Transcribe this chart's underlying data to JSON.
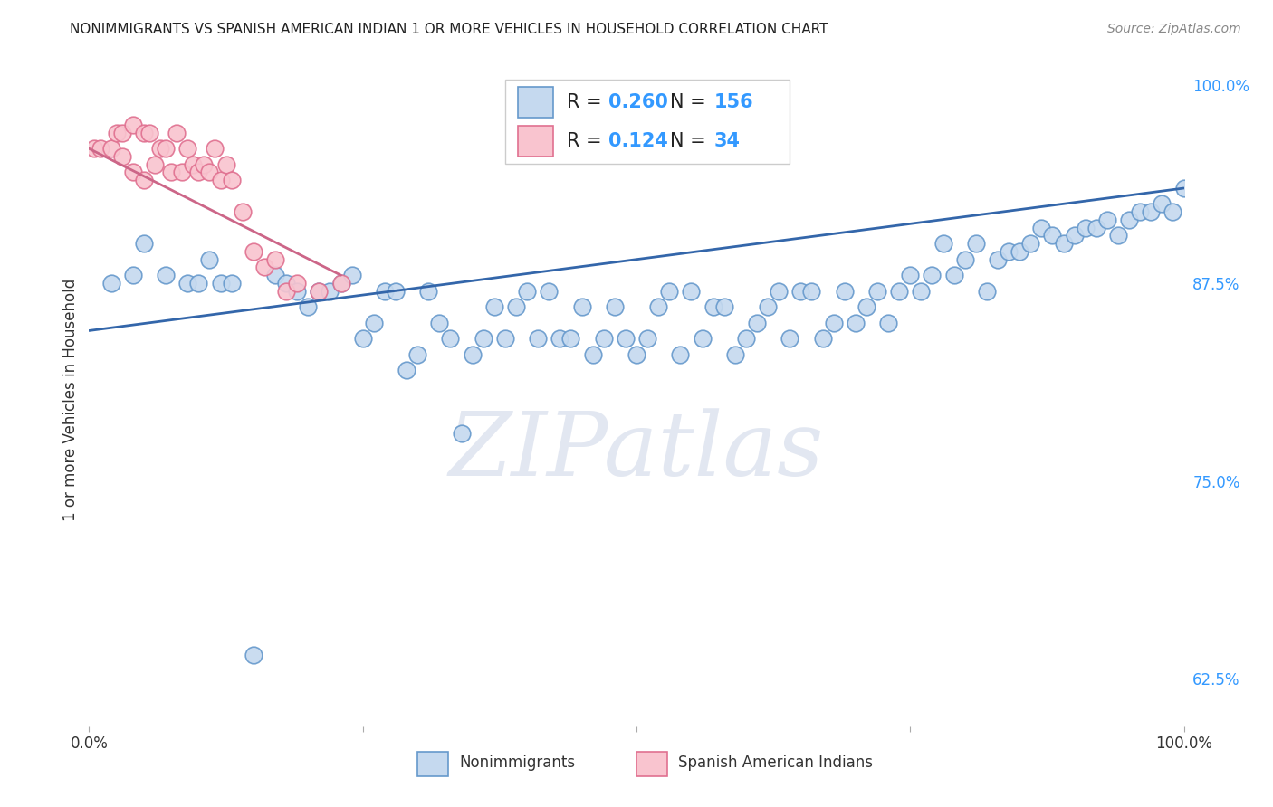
{
  "title": "NONIMMIGRANTS VS SPANISH AMERICAN INDIAN 1 OR MORE VEHICLES IN HOUSEHOLD CORRELATION CHART",
  "source": "Source: ZipAtlas.com",
  "ylabel": "1 or more Vehicles in Household",
  "legend_label_1": "Nonimmigrants",
  "legend_label_2": "Spanish American Indians",
  "R1": 0.26,
  "N1": 156,
  "R2": 0.124,
  "N2": 34,
  "color1_fill": "#c5d9ef",
  "color1_edge": "#6699cc",
  "color2_fill": "#f9c4cf",
  "color2_edge": "#e07090",
  "color1_line": "#3366aa",
  "color2_line": "#cc6688",
  "xlim": [
    0.0,
    1.0
  ],
  "ylim": [
    0.595,
    1.008
  ],
  "yticks": [
    0.625,
    0.75,
    0.875,
    1.0
  ],
  "ytick_labels": [
    "62.5%",
    "75.0%",
    "87.5%",
    "100.0%"
  ],
  "xticks": [
    0.0,
    0.25,
    0.5,
    0.75,
    1.0
  ],
  "xtick_labels": [
    "0.0%",
    "",
    "",
    "",
    "100.0%"
  ],
  "background_color": "#ffffff",
  "grid_color": "#cccccc",
  "watermark": "ZIPatlas",
  "scatter1_x": [
    0.02,
    0.04,
    0.05,
    0.07,
    0.09,
    0.1,
    0.11,
    0.12,
    0.13,
    0.15,
    0.17,
    0.18,
    0.19,
    0.2,
    0.21,
    0.22,
    0.23,
    0.24,
    0.25,
    0.26,
    0.27,
    0.28,
    0.29,
    0.3,
    0.31,
    0.32,
    0.33,
    0.34,
    0.35,
    0.36,
    0.37,
    0.38,
    0.39,
    0.4,
    0.41,
    0.42,
    0.43,
    0.44,
    0.45,
    0.46,
    0.47,
    0.48,
    0.49,
    0.5,
    0.51,
    0.52,
    0.53,
    0.54,
    0.55,
    0.56,
    0.57,
    0.58,
    0.59,
    0.6,
    0.61,
    0.62,
    0.63,
    0.64,
    0.65,
    0.66,
    0.67,
    0.68,
    0.69,
    0.7,
    0.71,
    0.72,
    0.73,
    0.74,
    0.75,
    0.76,
    0.77,
    0.78,
    0.79,
    0.8,
    0.81,
    0.82,
    0.83,
    0.84,
    0.85,
    0.86,
    0.87,
    0.88,
    0.89,
    0.9,
    0.91,
    0.92,
    0.93,
    0.94,
    0.95,
    0.96,
    0.97,
    0.98,
    0.99,
    1.0
  ],
  "scatter1_y": [
    0.875,
    0.88,
    0.9,
    0.88,
    0.875,
    0.875,
    0.89,
    0.875,
    0.875,
    0.64,
    0.88,
    0.875,
    0.87,
    0.86,
    0.87,
    0.87,
    0.875,
    0.88,
    0.84,
    0.85,
    0.87,
    0.87,
    0.82,
    0.83,
    0.87,
    0.85,
    0.84,
    0.78,
    0.83,
    0.84,
    0.86,
    0.84,
    0.86,
    0.87,
    0.84,
    0.87,
    0.84,
    0.84,
    0.86,
    0.83,
    0.84,
    0.86,
    0.84,
    0.83,
    0.84,
    0.86,
    0.87,
    0.83,
    0.87,
    0.84,
    0.86,
    0.86,
    0.83,
    0.84,
    0.85,
    0.86,
    0.87,
    0.84,
    0.87,
    0.87,
    0.84,
    0.85,
    0.87,
    0.85,
    0.86,
    0.87,
    0.85,
    0.87,
    0.88,
    0.87,
    0.88,
    0.9,
    0.88,
    0.89,
    0.9,
    0.87,
    0.89,
    0.895,
    0.895,
    0.9,
    0.91,
    0.905,
    0.9,
    0.905,
    0.91,
    0.91,
    0.915,
    0.905,
    0.915,
    0.92,
    0.92,
    0.925,
    0.92,
    0.935
  ],
  "scatter2_x": [
    0.005,
    0.01,
    0.02,
    0.025,
    0.03,
    0.03,
    0.04,
    0.04,
    0.05,
    0.05,
    0.055,
    0.06,
    0.065,
    0.07,
    0.075,
    0.08,
    0.085,
    0.09,
    0.095,
    0.1,
    0.105,
    0.11,
    0.115,
    0.12,
    0.125,
    0.13,
    0.14,
    0.15,
    0.16,
    0.17,
    0.18,
    0.19,
    0.21,
    0.23
  ],
  "scatter2_y": [
    0.96,
    0.96,
    0.96,
    0.97,
    0.97,
    0.955,
    0.975,
    0.945,
    0.97,
    0.94,
    0.97,
    0.95,
    0.96,
    0.96,
    0.945,
    0.97,
    0.945,
    0.96,
    0.95,
    0.945,
    0.95,
    0.945,
    0.96,
    0.94,
    0.95,
    0.94,
    0.92,
    0.895,
    0.885,
    0.89,
    0.87,
    0.875,
    0.87,
    0.875
  ],
  "trend1_x0": 0.0,
  "trend1_x1": 1.0,
  "trend1_y0": 0.845,
  "trend1_y1": 0.935,
  "trend2_x0": 0.0,
  "trend2_x1": 0.23,
  "trend2_y0": 0.96,
  "trend2_y1": 0.88
}
